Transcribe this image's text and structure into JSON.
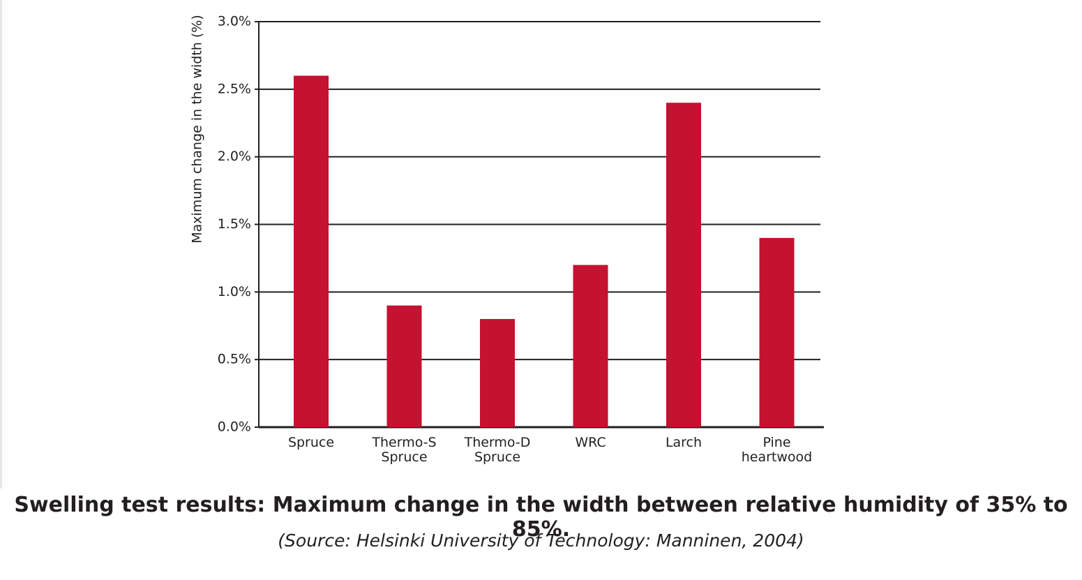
{
  "chart_data": {
    "type": "bar",
    "title": "Swelling test results: Maximum change in the width between relative humidity of 35% to 85%.",
    "subtitle": "(Source: Helsinki University of Technology: Manninen, 2004)",
    "y_label": "Maximum change in the width (%)",
    "categories": [
      "Spruce",
      "Thermo-S Spruce",
      "Thermo-D Spruce",
      "WRC",
      "Larch",
      "Pine heartwood"
    ],
    "values": [
      2.6,
      0.9,
      0.8,
      1.2,
      2.4,
      1.4
    ],
    "color": "#c41230",
    "ylim": [
      0,
      3
    ],
    "yticks": [
      {
        "value": 0,
        "label": "0.0%"
      },
      {
        "value": 0.5,
        "label": "0.5%"
      },
      {
        "value": 1,
        "label": "1.0%"
      },
      {
        "value": 1.5,
        "label": "1.5%"
      },
      {
        "value": 2,
        "label": "2.0%"
      },
      {
        "value": 2.5,
        "label": "2.5%"
      },
      {
        "value": 3,
        "label": "3.0%"
      }
    ],
    "grid": true
  }
}
